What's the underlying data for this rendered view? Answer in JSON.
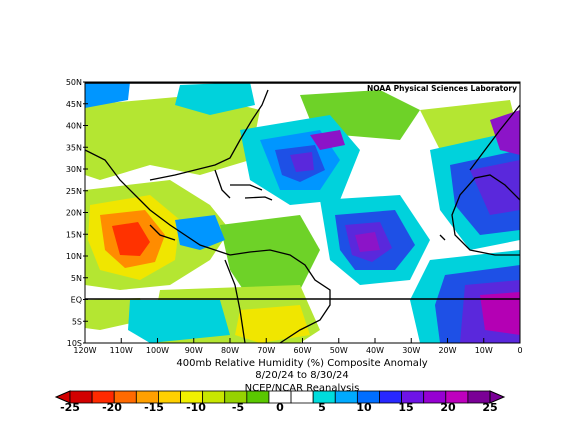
{
  "credit": "NOAA Physical Sciences Laboratory",
  "caption": {
    "line1": "400mb Relative Humidity (%) Composite Anomaly",
    "line2": "8/20/24  to 8/30/24",
    "line3": "NCEP/NCAR Reanalysis"
  },
  "axes": {
    "lat_labels": [
      "50N",
      "45N",
      "40N",
      "35N",
      "30N",
      "25N",
      "20N",
      "15N",
      "10N",
      "5N",
      "EQ",
      "5S",
      "10S"
    ],
    "lon_labels": [
      "120W",
      "110W",
      "100W",
      "90W",
      "80W",
      "70W",
      "60W",
      "50W",
      "40W",
      "30W",
      "20W",
      "10W",
      "0"
    ]
  },
  "colorbar": {
    "labels": [
      "-25",
      "-20",
      "-15",
      "-10",
      "-5",
      "0",
      "5",
      "10",
      "15",
      "20",
      "25"
    ],
    "colors": [
      "#d20000",
      "#ff2a00",
      "#ff6a00",
      "#ffa000",
      "#ffd000",
      "#f0f000",
      "#c8e600",
      "#96d200",
      "#5ac800",
      "#ffffff",
      "#ffffff",
      "#00dcdc",
      "#00aaff",
      "#006eff",
      "#2828ff",
      "#6e14e6",
      "#9600d2",
      "#be00be",
      "#7a0096"
    ]
  },
  "map": {
    "background": "#ffffff",
    "palette": {
      "red": "#ff3200",
      "orange": "#ff8c00",
      "yellow": "#f0e600",
      "lightgreen": "#b4e632",
      "green": "#6ed228",
      "cyan": "#00d2dc",
      "blue": "#0096ff",
      "darkblue": "#1e50e6",
      "violet": "#5a28dc",
      "purple": "#8c14c8",
      "magenta": "#b400b4"
    }
  }
}
